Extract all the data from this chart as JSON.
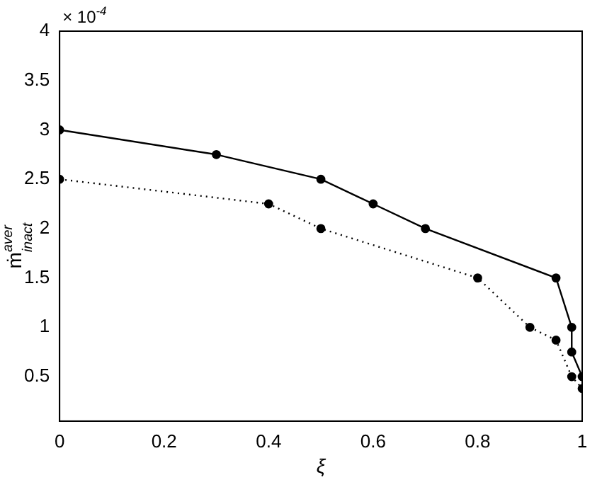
{
  "chart_data": {
    "type": "line",
    "xlabel": "ξ",
    "ylabel": "ṁ$^{aver}$$_{inact}$",
    "annotations": [
      "× 10$^{-4}$"
    ],
    "xlim": [
      0,
      1
    ],
    "xticks": [
      0,
      0.2,
      0.4,
      0.6,
      0.8,
      1
    ],
    "ylim": [
      0.05,
      4
    ],
    "yticks": [
      0.5,
      1,
      1.5,
      2,
      2.5,
      3,
      3.5,
      4
    ],
    "grid": false,
    "legend": false,
    "marker": "circle",
    "series": [
      {
        "color": "#000000",
        "line_style": "solid",
        "x": [
          0,
          0.3,
          0.5,
          0.6,
          0.7,
          0.95,
          0.98,
          0.98,
          1
        ],
        "values": [
          3,
          2.75,
          2.5,
          2.25,
          2,
          1.5,
          1,
          0.75,
          0.5
        ]
      },
      {
        "color": "#000000",
        "line_style": "dotted",
        "x": [
          0,
          0.4,
          0.5,
          0.8,
          0.9,
          0.95,
          0.98,
          1
        ],
        "values": [
          2.5,
          2.25,
          2,
          1.5,
          1,
          0.87,
          0.5,
          0.38
        ]
      }
    ]
  }
}
